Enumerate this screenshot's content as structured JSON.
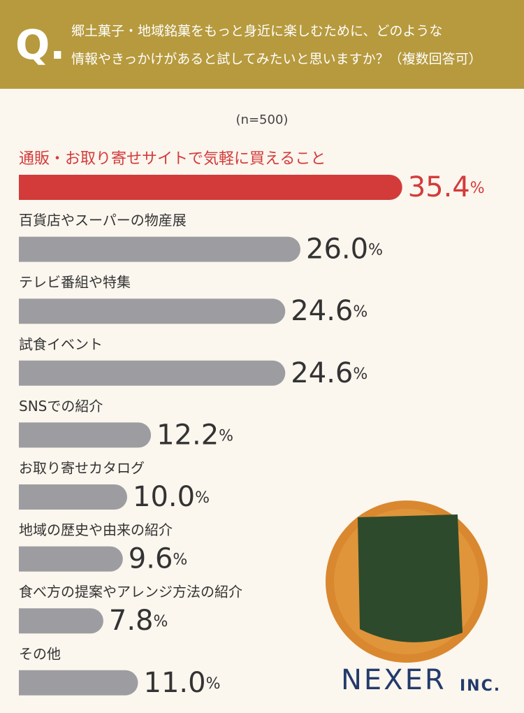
{
  "chart_data": {
    "type": "bar",
    "mark": "Q.",
    "question": [
      "郷土菓子・地域銘菓をもっと身近に楽しむために、どのような",
      "情報やきっかけがあると試してみたいと思いますか？（複数回答可）"
    ],
    "subtitle": "(n=500)",
    "categories": [
      "通販・お取り寄せサイトで気軽に買えること",
      "百貨店やスーパーの物産展",
      "テレビ番組や特集",
      "試食イベント",
      "SNSでの紹介",
      "お取り寄せカタログ",
      "地域の歴史や由来の紹介",
      "食べ方の提案やアレンジ方法の紹介",
      "その他"
    ],
    "values": [
      35.4,
      26.0,
      24.6,
      24.6,
      12.2,
      10.0,
      9.6,
      7.8,
      11.0
    ],
    "value_labels": [
      "35.4%",
      "26.0%",
      "24.6%",
      "24.6%",
      "12.2%",
      "10.0%",
      "9.6%",
      "7.8%",
      "11.0%"
    ],
    "colors": [
      "#d33b3b",
      "#9d9da1",
      "#9d9da1",
      "#9d9da1",
      "#9d9da1",
      "#9d9da1",
      "#9d9da1",
      "#9d9da1",
      "#9d9da1"
    ],
    "brand": "NEXER",
    "brand_suffix": "INC."
  }
}
